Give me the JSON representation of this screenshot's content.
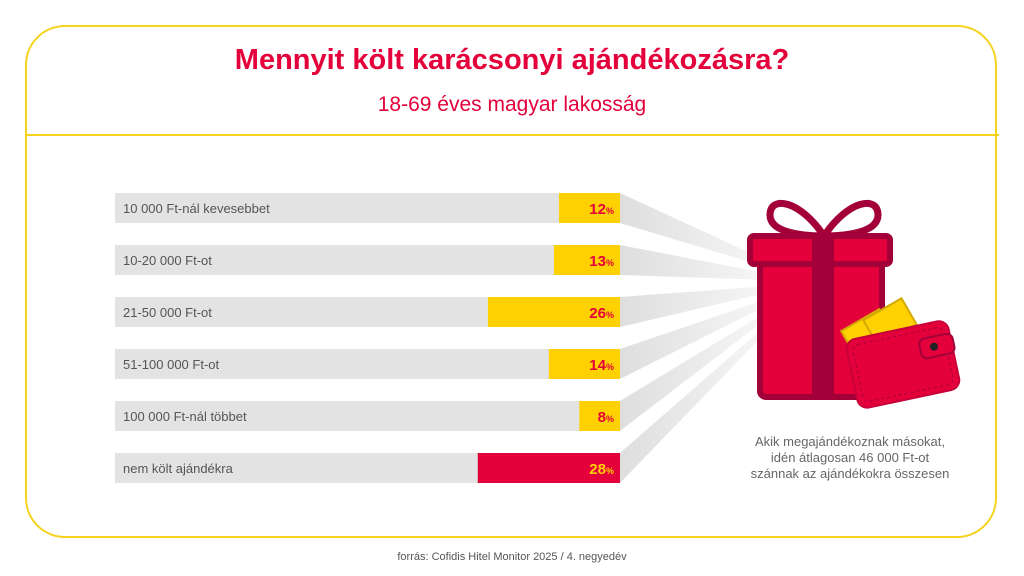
{
  "header": {
    "title": "Mennyit költ karácsonyi ajándékozásra?",
    "subtitle": "18-69 éves magyar lakosság"
  },
  "chart_data": {
    "type": "bar",
    "orientation": "horizontal",
    "categories": [
      "10 000 Ft-nál kevesebbet",
      "10-20 000 Ft-ot",
      "21-50 000 Ft-ot",
      "51-100 000 Ft-ot",
      "100 000 Ft-nál többet",
      "nem költ ajándékra"
    ],
    "values": [
      12,
      13,
      26,
      14,
      8,
      28
    ],
    "unit": "%",
    "bar_colors": [
      "#ffd100",
      "#ffd100",
      "#ffd100",
      "#ffd100",
      "#ffd100",
      "#e4003a"
    ],
    "label_colors": [
      "#e4003a",
      "#e4003a",
      "#e4003a",
      "#e4003a",
      "#e4003a",
      "#ffd100"
    ],
    "track_color": "#e3e3e3",
    "xlim": [
      0,
      100
    ],
    "grid": false
  },
  "note": {
    "lines": [
      "Akik megajándékoznak másokat,",
      "idén átlagosan 46 000 Ft-ot",
      "szánnak az ajándékokra összesen"
    ]
  },
  "illustration": {
    "icons": [
      "gift-icon",
      "wallet-icon",
      "banknote-icon"
    ]
  },
  "colors": {
    "accent": "#e4003a",
    "border": "#f5d21b",
    "gift_dark": "#a3003a"
  },
  "footer": {
    "source": "forrás: Cofidis Hitel Monitor 2025 / 4. negyedév"
  }
}
